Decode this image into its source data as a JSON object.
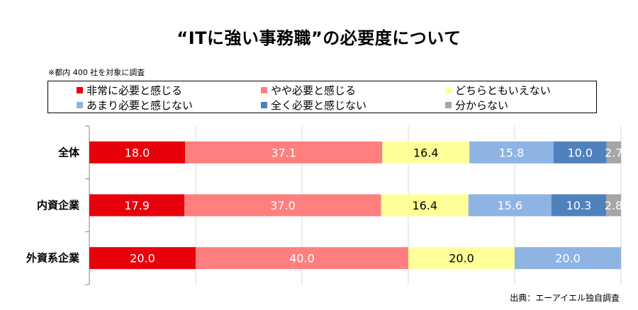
{
  "title": "“ITに強い事務職”の必要度について",
  "note": "※都内 400 社を対象に調査",
  "source": "出典：エーアイエル独自調査",
  "chart_data": {
    "type": "bar",
    "orientation": "horizontal",
    "stacked": true,
    "stack_mode": "percent",
    "xlim": [
      0,
      100
    ],
    "grid": true,
    "legend_position": "top",
    "categories": [
      "全体",
      "内資企業",
      "外資系企業"
    ],
    "series": [
      {
        "name": "非常に必要と感じる",
        "color": "#e8000b",
        "values": [
          18.0,
          17.9,
          20.0
        ],
        "labels": [
          "18.0",
          "17.9",
          "20.0"
        ],
        "text_color": "#ffffff"
      },
      {
        "name": "やや必要と感じる",
        "color": "#ff7f7f",
        "values": [
          37.1,
          37.0,
          40.0
        ],
        "labels": [
          "37.1",
          "37.0",
          "40.0"
        ],
        "text_color": "#ffffff"
      },
      {
        "name": "どちらともいえない",
        "color": "#ffff99",
        "values": [
          16.4,
          16.4,
          20.0
        ],
        "labels": [
          "16.4",
          "16.4",
          "20.0"
        ],
        "text_color": "#000000"
      },
      {
        "name": "あまり必要と感じない",
        "color": "#8eb4e3",
        "values": [
          15.8,
          15.6,
          20.0
        ],
        "labels": [
          "15.8",
          "15.6",
          "20.0"
        ],
        "text_color": "#ffffff"
      },
      {
        "name": "全く必要と感じない",
        "color": "#4f81bd",
        "values": [
          10.0,
          10.3,
          0
        ],
        "labels": [
          "10.0",
          "10.3",
          ""
        ],
        "text_color": "#ffffff"
      },
      {
        "name": "分からない",
        "color": "#a6a6a6",
        "values": [
          2.7,
          2.8,
          0
        ],
        "labels": [
          "2.7",
          "2.8",
          ""
        ],
        "text_color": "#ffffff"
      }
    ]
  }
}
